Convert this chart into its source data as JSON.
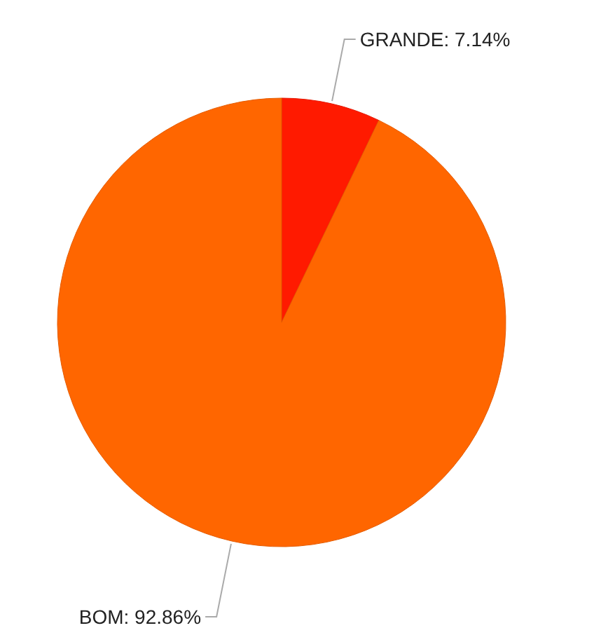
{
  "chart_data": {
    "type": "pie",
    "categories": [
      "GRANDE: 7.14%",
      "BOM: 92.86%"
    ],
    "values": [
      7.14,
      92.86
    ],
    "colors": [
      "#ff1a00",
      "#ff6600"
    ]
  }
}
